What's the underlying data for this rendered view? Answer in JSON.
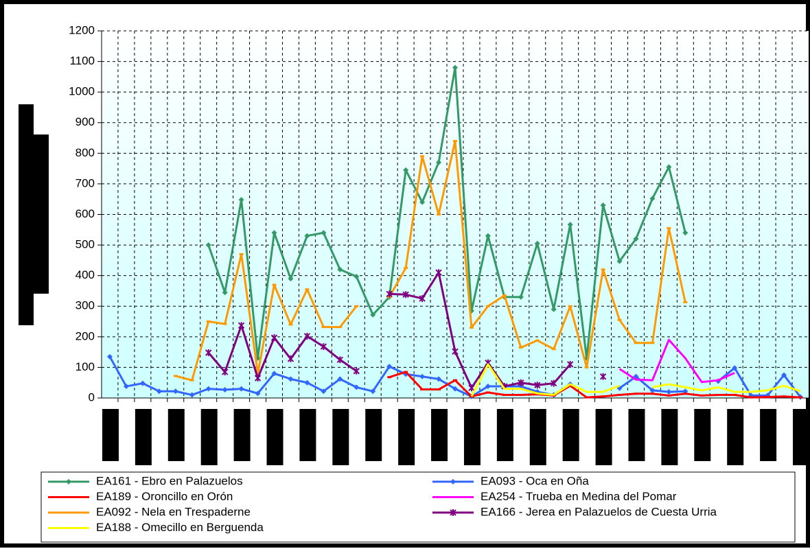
{
  "chart_data": {
    "type": "line",
    "categories": [
      null,
      null,
      null,
      null,
      null,
      null,
      null,
      null,
      null,
      null,
      null,
      null,
      null,
      null,
      null,
      null,
      null,
      null,
      null,
      null,
      null,
      null,
      null,
      null,
      null,
      null,
      null,
      null,
      null,
      null,
      null,
      null,
      null,
      null,
      null,
      null,
      null,
      null,
      null,
      null,
      null,
      null,
      null
    ],
    "ylim": [
      0,
      1200
    ],
    "yticks": [
      0,
      100,
      200,
      300,
      400,
      500,
      600,
      700,
      800,
      900,
      1000,
      1100,
      1200
    ],
    "grid": true,
    "series": [
      {
        "name": "EA161 - Ebro en Palazuelos",
        "color": "#339966",
        "marker": "diamond",
        "values": [
          null,
          null,
          null,
          null,
          null,
          null,
          500,
          345,
          648,
          130,
          540,
          390,
          530,
          540,
          420,
          397,
          272,
          330,
          745,
          640,
          770,
          1080,
          285,
          530,
          330,
          330,
          505,
          290,
          567,
          130,
          630,
          447,
          520,
          652,
          755,
          540,
          null,
          null,
          null,
          null,
          null,
          null,
          null
        ]
      },
      {
        "name": "EA093 - Oca en Oña",
        "color": "#3366ff",
        "marker": "diamond",
        "values": [
          135,
          38,
          48,
          22,
          22,
          10,
          30,
          27,
          30,
          15,
          80,
          62,
          50,
          22,
          62,
          35,
          22,
          103,
          78,
          70,
          62,
          30,
          5,
          38,
          38,
          38,
          20,
          10,
          45,
          null,
          null,
          32,
          70,
          25,
          20,
          22,
          null,
          55,
          98,
          8,
          8,
          75,
          3
        ]
      },
      {
        "name": "EA189 - Oroncillo en Orón",
        "color": "#ff0000",
        "marker": "dash",
        "values": [
          null,
          null,
          null,
          null,
          null,
          null,
          null,
          null,
          null,
          null,
          null,
          null,
          null,
          null,
          null,
          null,
          null,
          68,
          85,
          28,
          28,
          58,
          5,
          18,
          10,
          10,
          12,
          8,
          40,
          2,
          5,
          10,
          14,
          14,
          8,
          14,
          8,
          10,
          10,
          2,
          3,
          5,
          2
        ]
      },
      {
        "name": "EA254 - Trueba en Medina del Pomar",
        "color": "#ff00ff",
        "marker": "none",
        "values": [
          null,
          null,
          null,
          null,
          null,
          null,
          null,
          null,
          null,
          null,
          null,
          null,
          null,
          null,
          null,
          null,
          null,
          null,
          null,
          null,
          null,
          null,
          null,
          null,
          null,
          null,
          null,
          null,
          null,
          null,
          null,
          95,
          60,
          58,
          190,
          130,
          52,
          58,
          82,
          null,
          null,
          null,
          null
        ]
      },
      {
        "name": "EA092 - Nela en Trespaderne",
        "color": "#ff9900",
        "marker": "dash",
        "values": [
          null,
          null,
          null,
          null,
          72,
          58,
          250,
          242,
          470,
          80,
          370,
          240,
          355,
          232,
          232,
          300,
          null,
          330,
          425,
          790,
          600,
          840,
          230,
          300,
          335,
          165,
          188,
          160,
          300,
          100,
          420,
          255,
          180,
          180,
          555,
          313,
          null,
          null,
          null,
          null,
          null,
          null,
          null
        ]
      },
      {
        "name": "EA166 - Jerea en Palazuelos de Cuesta Urria",
        "color": "#800080",
        "marker": "asterisk",
        "values": [
          null,
          null,
          null,
          null,
          null,
          null,
          148,
          85,
          237,
          65,
          197,
          128,
          202,
          168,
          125,
          88,
          null,
          340,
          338,
          325,
          410,
          152,
          33,
          115,
          38,
          50,
          42,
          48,
          110,
          null,
          70,
          null,
          null,
          null,
          null,
          null,
          null,
          null,
          null,
          null,
          null,
          null,
          null
        ]
      },
      {
        "name": "EA188 - Omecillo en Berguenda",
        "color": "#ffff00",
        "marker": "none",
        "values": [
          null,
          null,
          null,
          null,
          null,
          null,
          null,
          null,
          null,
          null,
          null,
          null,
          null,
          null,
          null,
          null,
          null,
          null,
          null,
          null,
          null,
          null,
          5,
          110,
          30,
          30,
          15,
          10,
          45,
          20,
          20,
          40,
          null,
          35,
          45,
          35,
          25,
          35,
          20,
          20,
          25,
          40,
          22
        ]
      }
    ]
  }
}
